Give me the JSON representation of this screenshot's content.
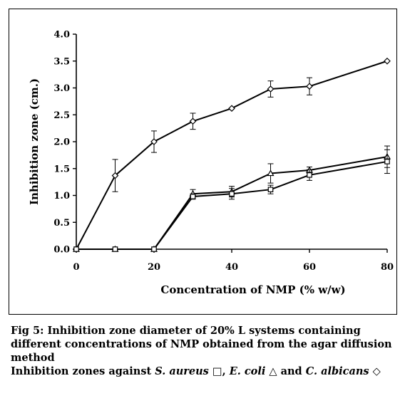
{
  "chart_data": {
    "type": "line",
    "xlabel": "Concentration of NMP (% w/w)",
    "ylabel": "Inhibition zone (cm.)",
    "xlim": [
      0,
      80
    ],
    "ylim": [
      0.0,
      4.0
    ],
    "xticks": [
      0,
      20,
      40,
      60,
      80
    ],
    "yticks": [
      "0.0",
      "0.5",
      "1.0",
      "1.5",
      "2.0",
      "2.5",
      "3.0",
      "3.5",
      "4.0"
    ],
    "grid": false,
    "legend": "none",
    "series": [
      {
        "marker": "diamond",
        "x": [
          0,
          10,
          20,
          30,
          40,
          50,
          60,
          80
        ],
        "y": [
          0.0,
          1.37,
          2.0,
          2.38,
          2.62,
          2.98,
          3.03,
          3.5
        ],
        "err": [
          0,
          0.3,
          0.2,
          0.15,
          0,
          0.15,
          0.16,
          0
        ]
      },
      {
        "marker": "triangle",
        "x": [
          0,
          10,
          20,
          30,
          40,
          50,
          60,
          80
        ],
        "y": [
          0.0,
          0.0,
          0.0,
          1.03,
          1.07,
          1.41,
          1.47,
          1.72
        ],
        "err": [
          0,
          0,
          0,
          0.08,
          0.1,
          0.18,
          0.06,
          0.2
        ]
      },
      {
        "marker": "square",
        "x": [
          0,
          10,
          20,
          30,
          40,
          50,
          60,
          80
        ],
        "y": [
          0.0,
          0.0,
          0.0,
          0.98,
          1.03,
          1.11,
          1.38,
          1.63
        ],
        "err": [
          0,
          0,
          0,
          0.05,
          0.1,
          0.08,
          0.1,
          0.22
        ]
      }
    ]
  },
  "caption": {
    "line1": "Fig 5: Inhibition zone diameter of 20% L systems containing",
    "line2": "different concentrations of NMP obtained from the agar diffusion",
    "line3": "method",
    "l4_a": "Inhibition zones against ",
    "l4_sa": "S. aureus",
    "l4_b": " □, ",
    "l4_ec": "E. coli",
    "l4_c": " △ and ",
    "l4_ca": "C. albicans",
    "l4_d": " ◇"
  }
}
